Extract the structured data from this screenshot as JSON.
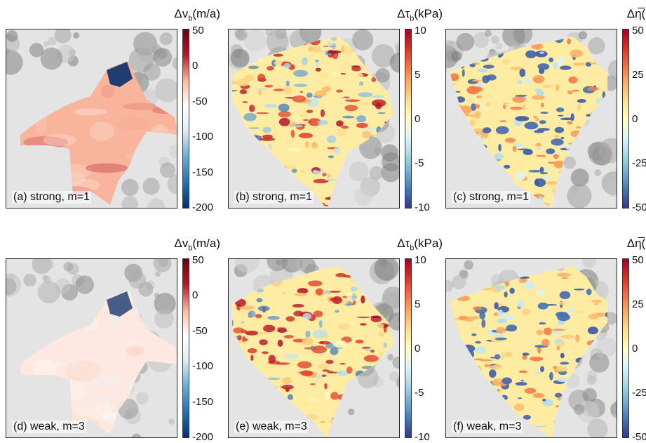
{
  "chart_data": [
    {
      "type": "heatmap",
      "panel": "a",
      "label": "(a) strong, m=1",
      "colorbar": {
        "title": "Δv",
        "sub": "b",
        "unit": "(m/a)",
        "ticks": [
          50,
          0,
          -50,
          -100,
          -150,
          -200
        ],
        "range": [
          -200,
          50
        ],
        "colormap": "diverging-blue-white-red"
      }
    },
    {
      "type": "heatmap",
      "panel": "b",
      "label": "(b) strong, m=1",
      "colorbar": {
        "title": "Δτ",
        "sub": "b",
        "unit": "(kPa)",
        "ticks": [
          10,
          5,
          0,
          -5,
          -10
        ],
        "range": [
          -10,
          10
        ],
        "colormap": "rdylbu"
      }
    },
    {
      "type": "heatmap",
      "panel": "c",
      "label": "(c) strong, m=1",
      "colorbar": {
        "title": "Δη̅",
        "sub": "",
        "unit": "(%)",
        "ticks": [
          50,
          25,
          0,
          -25,
          -50
        ],
        "range": [
          -50,
          50
        ],
        "colormap": "rdylbu"
      }
    },
    {
      "type": "heatmap",
      "panel": "d",
      "label": "(d) weak, m=3",
      "colorbar": {
        "title": "Δv",
        "sub": "b",
        "unit": "(m/a)",
        "ticks": [
          50,
          0,
          -50,
          -100,
          -150,
          -200
        ],
        "range": [
          -200,
          50
        ],
        "colormap": "diverging-blue-white-red"
      }
    },
    {
      "type": "heatmap",
      "panel": "e",
      "label": "(e) weak, m=3",
      "colorbar": {
        "title": "Δτ",
        "sub": "b",
        "unit": "(kPa)",
        "ticks": [
          10,
          5,
          0,
          -5,
          -10
        ],
        "range": [
          -10,
          10
        ],
        "colormap": "rdylbu"
      }
    },
    {
      "type": "heatmap",
      "panel": "f",
      "label": "(f) weak, m=3",
      "colorbar": {
        "title": "Δη̅",
        "sub": "",
        "unit": "(%)",
        "ticks": [
          50,
          25,
          0,
          -25,
          -50
        ],
        "range": [
          -50,
          50
        ],
        "colormap": "rdylbu"
      }
    }
  ],
  "colors": {
    "velocity_bar": [
      "#08306b",
      "#2171b5",
      "#6baed6",
      "#deebf7",
      "#ffffff",
      "#fcbba1",
      "#b2182b",
      "#67000d"
    ],
    "rdylbu": [
      "#313695",
      "#4575b4",
      "#74add1",
      "#abd9e9",
      "#e0f3f8",
      "#ffffbf",
      "#fee090",
      "#fdae61",
      "#f46d43",
      "#d73027",
      "#a50026"
    ]
  }
}
